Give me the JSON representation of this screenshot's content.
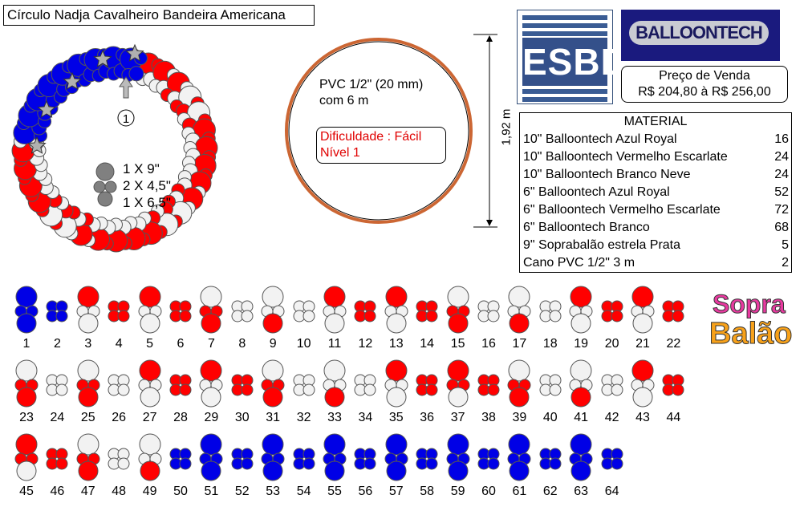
{
  "title": "Círculo Nadja Cavalheiro Bandeira Americana",
  "pointer_label": "1",
  "legend": {
    "line1": "1 X 9\"",
    "line2": "2 X 4,5\"",
    "line3": "1 X 6,5\""
  },
  "pvc_line1": "PVC 1/2\" (20 mm)",
  "pvc_line2": "com 6 m",
  "difficulty_line1": "Dificuldade : Fácil",
  "difficulty_line2": "Nível 1",
  "height_label": "1,92 m",
  "esbd_logo": "ESBD",
  "balloontech_logo": "BALLOONTECH",
  "price": {
    "label": "Preço de Venda",
    "value": "R$ 204,80 à R$ 256,00"
  },
  "material": {
    "header": "MATERIAL",
    "items": [
      {
        "name": "10\" Balloontech Azul Royal",
        "qty": "16"
      },
      {
        "name": "10\" Balloontech Vermelho Escarlate",
        "qty": "24"
      },
      {
        "name": "10\" Balloontech Branco Neve",
        "qty": "24"
      },
      {
        "name": "6\" Balloontech Azul Royal",
        "qty": "52"
      },
      {
        "name": "6\" Balloontech Vermelho Escarlate",
        "qty": "72"
      },
      {
        "name": "6\" Balloontech Branco",
        "qty": "68"
      },
      {
        "name": "9\" Soprabalão estrela Prata",
        "qty": "5"
      },
      {
        "name": "Cano PVC 1/2\" 3 m",
        "qty": "2"
      }
    ]
  },
  "soprabalao_logo": {
    "line1": "Sopra",
    "line2": "Balão"
  },
  "colors": {
    "blue": "#0000e6",
    "red": "#ff0000",
    "white": "#f2f2f2",
    "gray": "#808080",
    "ring": "#cc6633",
    "silver": "#b0b0b0"
  },
  "modules": [
    {
      "n": "1",
      "type": "pair",
      "top": "b",
      "mid": "b",
      "bot": "b"
    },
    {
      "n": "2",
      "type": "cross",
      "c": "b"
    },
    {
      "n": "3",
      "type": "pair",
      "top": "r",
      "mid": "w",
      "bot": "w"
    },
    {
      "n": "4",
      "type": "cross",
      "c": "r"
    },
    {
      "n": "5",
      "type": "pair",
      "top": "r",
      "mid": "w",
      "bot": "w"
    },
    {
      "n": "6",
      "type": "cross",
      "c": "r"
    },
    {
      "n": "7",
      "type": "pair",
      "top": "w",
      "mid": "r",
      "bot": "r"
    },
    {
      "n": "8",
      "type": "cross",
      "c": "w"
    },
    {
      "n": "9",
      "type": "pair",
      "top": "w",
      "mid": "w",
      "bot": "r"
    },
    {
      "n": "10",
      "type": "cross",
      "c": "w"
    },
    {
      "n": "11",
      "type": "pair",
      "top": "r",
      "mid": "w",
      "bot": "w"
    },
    {
      "n": "12",
      "type": "cross",
      "c": "r"
    },
    {
      "n": "13",
      "type": "pair",
      "top": "r",
      "mid": "w",
      "bot": "w"
    },
    {
      "n": "14",
      "type": "cross",
      "c": "r"
    },
    {
      "n": "15",
      "type": "pair",
      "top": "w",
      "mid": "r",
      "bot": "r"
    },
    {
      "n": "16",
      "type": "cross",
      "c": "w"
    },
    {
      "n": "17",
      "type": "pair",
      "top": "w",
      "mid": "w",
      "bot": "r"
    },
    {
      "n": "18",
      "type": "cross",
      "c": "w"
    },
    {
      "n": "19",
      "type": "pair",
      "top": "r",
      "mid": "w",
      "bot": "w"
    },
    {
      "n": "20",
      "type": "cross",
      "c": "r"
    },
    {
      "n": "21",
      "type": "pair",
      "top": "r",
      "mid": "w",
      "bot": "w"
    },
    {
      "n": "22",
      "type": "cross",
      "c": "r"
    },
    {
      "n": "23",
      "type": "pair",
      "top": "w",
      "mid": "r",
      "bot": "r"
    },
    {
      "n": "24",
      "type": "cross",
      "c": "w"
    },
    {
      "n": "25",
      "type": "pair",
      "top": "w",
      "mid": "r",
      "bot": "r"
    },
    {
      "n": "26",
      "type": "cross",
      "c": "w"
    },
    {
      "n": "27",
      "type": "pair",
      "top": "r",
      "mid": "w",
      "bot": "w"
    },
    {
      "n": "28",
      "type": "cross",
      "c": "r"
    },
    {
      "n": "29",
      "type": "pair",
      "top": "r",
      "mid": "w",
      "bot": "w"
    },
    {
      "n": "30",
      "type": "cross",
      "c": "r"
    },
    {
      "n": "31",
      "type": "pair",
      "top": "w",
      "mid": "r",
      "bot": "r"
    },
    {
      "n": "32",
      "type": "cross",
      "c": "w"
    },
    {
      "n": "33",
      "type": "pair",
      "top": "w",
      "mid": "w",
      "bot": "r"
    },
    {
      "n": "34",
      "type": "cross",
      "c": "w"
    },
    {
      "n": "35",
      "type": "pair",
      "top": "r",
      "mid": "w",
      "bot": "w"
    },
    {
      "n": "36",
      "type": "cross",
      "c": "r"
    },
    {
      "n": "37",
      "type": "pair",
      "top": "r",
      "mid": "r",
      "bot": "w"
    },
    {
      "n": "38",
      "type": "cross",
      "c": "r"
    },
    {
      "n": "39",
      "type": "pair",
      "top": "w",
      "mid": "r",
      "bot": "r"
    },
    {
      "n": "40",
      "type": "cross",
      "c": "w"
    },
    {
      "n": "41",
      "type": "pair",
      "top": "w",
      "mid": "w",
      "bot": "r"
    },
    {
      "n": "42",
      "type": "cross",
      "c": "w"
    },
    {
      "n": "43",
      "type": "pair",
      "top": "r",
      "mid": "w",
      "bot": "w"
    },
    {
      "n": "44",
      "type": "cross",
      "c": "r"
    },
    {
      "n": "45",
      "type": "pair",
      "top": "r",
      "mid": "r",
      "bot": "w"
    },
    {
      "n": "46",
      "type": "cross",
      "c": "r"
    },
    {
      "n": "47",
      "type": "pair",
      "top": "w",
      "mid": "r",
      "bot": "r"
    },
    {
      "n": "48",
      "type": "cross",
      "c": "w"
    },
    {
      "n": "49",
      "type": "pair",
      "top": "w",
      "mid": "w",
      "bot": "r"
    },
    {
      "n": "50",
      "type": "cross",
      "c": "b"
    },
    {
      "n": "51",
      "type": "pair",
      "top": "b",
      "mid": "b",
      "bot": "b"
    },
    {
      "n": "52",
      "type": "cross",
      "c": "b"
    },
    {
      "n": "53",
      "type": "pair",
      "top": "b",
      "mid": "b",
      "bot": "b"
    },
    {
      "n": "54",
      "type": "cross",
      "c": "b"
    },
    {
      "n": "55",
      "type": "pair",
      "top": "b",
      "mid": "b",
      "bot": "b"
    },
    {
      "n": "56",
      "type": "cross",
      "c": "b"
    },
    {
      "n": "57",
      "type": "pair",
      "top": "b",
      "mid": "b",
      "bot": "b"
    },
    {
      "n": "58",
      "type": "cross",
      "c": "b"
    },
    {
      "n": "59",
      "type": "pair",
      "top": "b",
      "mid": "b",
      "bot": "b"
    },
    {
      "n": "60",
      "type": "cross",
      "c": "b"
    },
    {
      "n": "61",
      "type": "pair",
      "top": "b",
      "mid": "b",
      "bot": "b"
    },
    {
      "n": "62",
      "type": "cross",
      "c": "b"
    },
    {
      "n": "63",
      "type": "pair",
      "top": "b",
      "mid": "b",
      "bot": "b"
    },
    {
      "n": "64",
      "type": "cross",
      "c": "b"
    }
  ]
}
